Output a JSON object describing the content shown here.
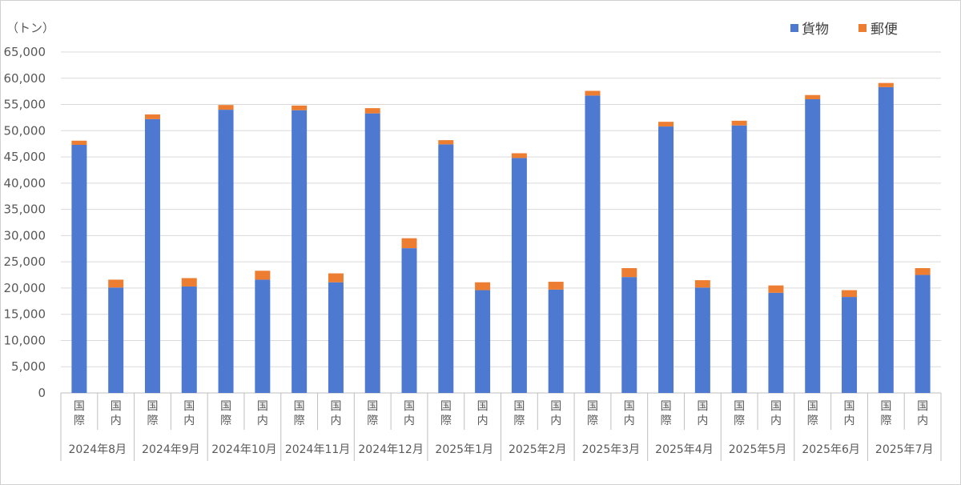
{
  "chart_data": {
    "type": "bar",
    "stacked": true,
    "unit_label": "（トン）",
    "ylim": [
      0,
      65000
    ],
    "y_ticks": [
      "0",
      "5,000",
      "10,000",
      "15,000",
      "20,000",
      "25,000",
      "30,000",
      "35,000",
      "40,000",
      "45,000",
      "50,000",
      "55,000",
      "60,000",
      "65,000"
    ],
    "grid": true,
    "legend_position": "top-right",
    "sub_labels": [
      "国際",
      "国内"
    ],
    "months": [
      "2024年8月",
      "2024年9月",
      "2024年10月",
      "2024年11月",
      "2024年12月",
      "2025年1月",
      "2025年2月",
      "2025年3月",
      "2025年4月",
      "2025年5月",
      "2025年6月",
      "2025年7月"
    ],
    "series": [
      {
        "name": "貨物",
        "color": "#4e79d1",
        "values": [
          47300,
          20100,
          52200,
          20300,
          54000,
          21600,
          53900,
          21100,
          53300,
          27600,
          47400,
          19600,
          44800,
          19700,
          56700,
          22100,
          50800,
          20100,
          51000,
          19100,
          56000,
          18300,
          58300,
          22500
        ]
      },
      {
        "name": "郵便",
        "color": "#ed7d31",
        "values": [
          800,
          1500,
          900,
          1600,
          900,
          1700,
          900,
          1700,
          1000,
          1900,
          800,
          1500,
          900,
          1500,
          900,
          1700,
          900,
          1400,
          900,
          1400,
          800,
          1300,
          800,
          1300
        ]
      }
    ]
  }
}
